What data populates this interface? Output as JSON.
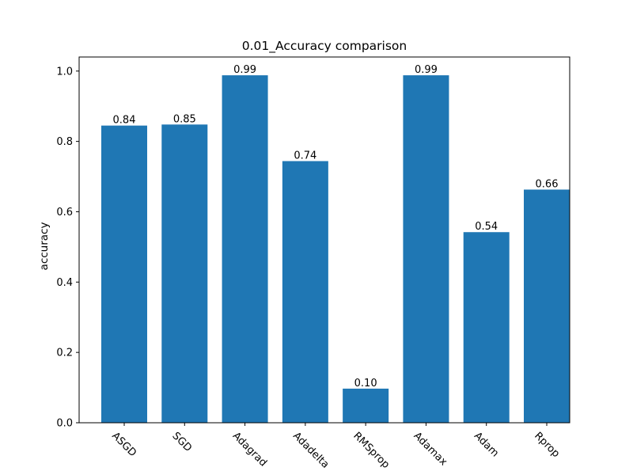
{
  "chart_data": {
    "type": "bar",
    "title": "0.01_Accuracy comparison",
    "xlabel": "",
    "ylabel": "accuracy",
    "categories": [
      "ASGD",
      "SGD",
      "Adagrad",
      "Adadelta",
      "RMSprop",
      "Adamax",
      "Adam",
      "Rprop"
    ],
    "values": [
      0.845,
      0.848,
      0.988,
      0.744,
      0.097,
      0.988,
      0.542,
      0.663
    ],
    "data_labels": [
      "0.84",
      "0.85",
      "0.99",
      "0.74",
      "0.10",
      "0.99",
      "0.54",
      "0.66"
    ],
    "ylim": [
      0,
      1.04
    ],
    "yticks": [
      0.0,
      0.2,
      0.4,
      0.6,
      0.8,
      1.0
    ],
    "ytick_labels": [
      "0.0",
      "0.2",
      "0.4",
      "0.6",
      "0.8",
      "1.0"
    ],
    "xtick_rotation": "-45",
    "grid": false,
    "legend": "none",
    "bar_color": "#1f77b4"
  }
}
